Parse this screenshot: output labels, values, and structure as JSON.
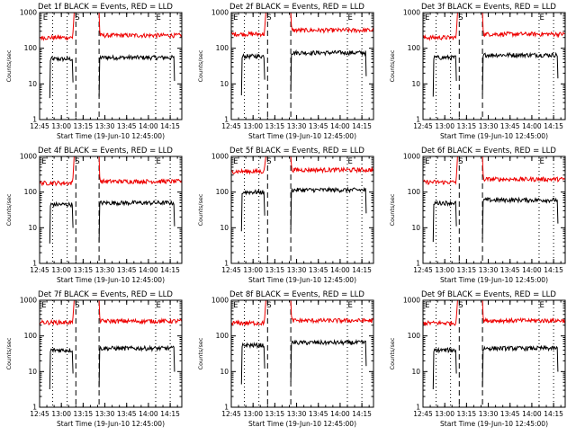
{
  "figure": {
    "colors": {
      "events": "#000000",
      "lld": "#ee0000",
      "axes": "#000000",
      "background": "#ffffff"
    }
  },
  "chart_data": [
    {
      "type": "line",
      "title": "Det 1f BLACK = Events, RED = LLD",
      "ylabel": "Counts/sec",
      "xlabel": "Start Time (19-Jun-10 12:45:00)",
      "y_scale": "log",
      "ylim": [
        1,
        1000
      ],
      "y_ticks": [
        "1",
        "10",
        "100",
        "1000"
      ],
      "x_ticks": [
        "12:45",
        "13:00",
        "13:15",
        "13:30",
        "13:45",
        "14:00",
        "14:15"
      ],
      "xlim": [
        "12:45",
        "14:23"
      ],
      "markers": [
        {
          "label": "E",
          "time": "12:49"
        },
        {
          "label": "S",
          "time": "13:11"
        },
        {
          "label": "E",
          "time": "14:07"
        }
      ],
      "dotted_lines": [
        "12:54",
        "13:04",
        "14:05",
        "14:15"
      ],
      "dashed_lines": [
        "13:10",
        "13:26"
      ],
      "series": [
        {
          "name": "Events",
          "segments": [
            {
              "start": "12:52",
              "end": "13:08",
              "level": 50
            },
            {
              "start": "13:26",
              "end": "14:18",
              "level": 55
            }
          ]
        },
        {
          "name": "LLD",
          "segments": [
            {
              "start": "12:45",
              "end": "13:08",
              "level": 200
            },
            {
              "start": "13:26",
              "end": "14:23",
              "level": 230
            }
          ]
        }
      ]
    },
    {
      "type": "line",
      "title": "Det 2f BLACK = Events, RED = LLD",
      "ylabel": "Counts/sec",
      "xlabel": "Start Time (19-Jun-10 12:45:00)",
      "y_scale": "log",
      "ylim": [
        1,
        1000
      ],
      "y_ticks": [
        "1",
        "10",
        "100",
        "1000"
      ],
      "x_ticks": [
        "12:45",
        "13:00",
        "13:15",
        "13:30",
        "13:45",
        "14:00",
        "14:15"
      ],
      "xlim": [
        "12:45",
        "14:23"
      ],
      "markers": [
        {
          "label": "E",
          "time": "12:48"
        },
        {
          "label": "S",
          "time": "13:11"
        },
        {
          "label": "E",
          "time": "14:07"
        }
      ],
      "dotted_lines": [
        "12:54",
        "13:04",
        "14:05",
        "14:15"
      ],
      "dashed_lines": [
        "13:10",
        "13:26"
      ],
      "series": [
        {
          "name": "Events",
          "segments": [
            {
              "start": "12:52",
              "end": "13:08",
              "level": 60
            },
            {
              "start": "13:26",
              "end": "14:18",
              "level": 75
            }
          ]
        },
        {
          "name": "LLD",
          "segments": [
            {
              "start": "12:45",
              "end": "13:08",
              "level": 250
            },
            {
              "start": "13:26",
              "end": "14:23",
              "level": 320
            }
          ]
        }
      ]
    },
    {
      "type": "line",
      "title": "Det 3f BLACK = Events, RED = LLD",
      "ylabel": "Counts/sec",
      "xlabel": "Start Time (19-Jun-10 12:45:00)",
      "y_scale": "log",
      "ylim": [
        1,
        1000
      ],
      "y_ticks": [
        "1",
        "10",
        "100",
        "1000"
      ],
      "x_ticks": [
        "12:45",
        "13:00",
        "13:15",
        "13:30",
        "13:45",
        "14:00",
        "14:15"
      ],
      "xlim": [
        "12:45",
        "14:23"
      ],
      "markers": [
        {
          "label": "E",
          "time": "12:48"
        },
        {
          "label": "S",
          "time": "13:11"
        },
        {
          "label": "E",
          "time": "14:07"
        }
      ],
      "dotted_lines": [
        "12:54",
        "13:04",
        "14:05",
        "14:15"
      ],
      "dashed_lines": [
        "13:10",
        "13:26"
      ],
      "series": [
        {
          "name": "Events",
          "segments": [
            {
              "start": "12:52",
              "end": "13:08",
              "level": 55
            },
            {
              "start": "13:26",
              "end": "14:18",
              "level": 65
            }
          ]
        },
        {
          "name": "LLD",
          "segments": [
            {
              "start": "12:45",
              "end": "13:08",
              "level": 200
            },
            {
              "start": "13:26",
              "end": "14:23",
              "level": 250
            }
          ]
        }
      ]
    },
    {
      "type": "line",
      "title": "Det 4f BLACK = Events, RED = LLD",
      "ylabel": "Counts/sec",
      "xlabel": "Start Time (19-Jun-10 12:45:00)",
      "y_scale": "log",
      "ylim": [
        1,
        1000
      ],
      "y_ticks": [
        "1",
        "10",
        "100",
        "1000"
      ],
      "x_ticks": [
        "12:45",
        "13:00",
        "13:15",
        "13:30",
        "13:45",
        "14:00",
        "14:15"
      ],
      "xlim": [
        "12:45",
        "14:23"
      ],
      "markers": [
        {
          "label": "E",
          "time": "12:48"
        },
        {
          "label": "S",
          "time": "13:11"
        },
        {
          "label": "E",
          "time": "14:07"
        }
      ],
      "dotted_lines": [
        "12:54",
        "13:04",
        "14:05",
        "14:15"
      ],
      "dashed_lines": [
        "13:10",
        "13:26"
      ],
      "series": [
        {
          "name": "Events",
          "segments": [
            {
              "start": "12:52",
              "end": "13:08",
              "level": 45
            },
            {
              "start": "13:26",
              "end": "14:18",
              "level": 50
            }
          ]
        },
        {
          "name": "LLD",
          "segments": [
            {
              "start": "12:45",
              "end": "13:08",
              "level": 180
            },
            {
              "start": "13:26",
              "end": "14:23",
              "level": 200
            }
          ]
        }
      ]
    },
    {
      "type": "line",
      "title": "Det 5f BLACK = Events, RED = LLD",
      "ylabel": "Counts/sec",
      "xlabel": "Start Time (19-Jun-10 12:45:00)",
      "y_scale": "log",
      "ylim": [
        1,
        1000
      ],
      "y_ticks": [
        "1",
        "10",
        "100",
        "1000"
      ],
      "x_ticks": [
        "12:45",
        "13:00",
        "13:15",
        "13:30",
        "13:45",
        "14:00",
        "14:15"
      ],
      "xlim": [
        "12:45",
        "14:23"
      ],
      "markers": [
        {
          "label": "E",
          "time": "12:48"
        },
        {
          "label": "S",
          "time": "13:11"
        },
        {
          "label": "E",
          "time": "14:07"
        }
      ],
      "dotted_lines": [
        "12:54",
        "13:04",
        "14:05",
        "14:15"
      ],
      "dashed_lines": [
        "13:10",
        "13:26"
      ],
      "series": [
        {
          "name": "Events",
          "segments": [
            {
              "start": "12:52",
              "end": "13:08",
              "level": 100
            },
            {
              "start": "13:26",
              "end": "14:18",
              "level": 115
            }
          ]
        },
        {
          "name": "LLD",
          "segments": [
            {
              "start": "12:45",
              "end": "13:08",
              "level": 380
            },
            {
              "start": "13:26",
              "end": "14:23",
              "level": 420
            }
          ]
        }
      ]
    },
    {
      "type": "line",
      "title": "Det 6f BLACK = Events, RED = LLD",
      "ylabel": "Counts/sec",
      "xlabel": "Start Time (19-Jun-10 12:45:00)",
      "y_scale": "log",
      "ylim": [
        1,
        1000
      ],
      "y_ticks": [
        "1",
        "10",
        "100",
        "1000"
      ],
      "x_ticks": [
        "12:45",
        "13:00",
        "13:15",
        "13:30",
        "13:45",
        "14:00",
        "14:15"
      ],
      "xlim": [
        "12:45",
        "14:23"
      ],
      "markers": [
        {
          "label": "E",
          "time": "12:48"
        },
        {
          "label": "S",
          "time": "13:11"
        },
        {
          "label": "E",
          "time": "14:07"
        }
      ],
      "dotted_lines": [
        "12:54",
        "13:04",
        "14:05",
        "14:15"
      ],
      "dashed_lines": [
        "13:10",
        "13:26"
      ],
      "series": [
        {
          "name": "Events",
          "segments": [
            {
              "start": "12:52",
              "end": "13:08",
              "level": 50
            },
            {
              "start": "13:26",
              "end": "14:18",
              "level": 60
            }
          ]
        },
        {
          "name": "LLD",
          "segments": [
            {
              "start": "12:45",
              "end": "13:08",
              "level": 190
            },
            {
              "start": "13:26",
              "end": "14:23",
              "level": 230
            }
          ]
        }
      ]
    },
    {
      "type": "line",
      "title": "Det 7f BLACK = Events, RED = LLD",
      "ylabel": "Counts/sec",
      "xlabel": "Start Time (19-Jun-10 12:45:00)",
      "y_scale": "log",
      "ylim": [
        1,
        1000
      ],
      "y_ticks": [
        "1",
        "10",
        "100",
        "1000"
      ],
      "x_ticks": [
        "12:45",
        "13:00",
        "13:15",
        "13:30",
        "13:45",
        "14:00",
        "14:15"
      ],
      "xlim": [
        "12:45",
        "14:23"
      ],
      "markers": [
        {
          "label": "E",
          "time": "12:48"
        },
        {
          "label": "S",
          "time": "13:11"
        },
        {
          "label": "E",
          "time": "14:07"
        }
      ],
      "dotted_lines": [
        "12:54",
        "13:04",
        "14:05",
        "14:15"
      ],
      "dashed_lines": [
        "13:10",
        "13:26"
      ],
      "series": [
        {
          "name": "Events",
          "segments": [
            {
              "start": "12:52",
              "end": "13:08",
              "level": 40
            },
            {
              "start": "13:26",
              "end": "14:18",
              "level": 45
            }
          ]
        },
        {
          "name": "LLD",
          "segments": [
            {
              "start": "12:45",
              "end": "13:08",
              "level": 240
            },
            {
              "start": "13:26",
              "end": "14:23",
              "level": 260
            }
          ]
        }
      ]
    },
    {
      "type": "line",
      "title": "Det 8f BLACK = Events, RED = LLD",
      "ylabel": "Counts/sec",
      "xlabel": "Start Time (19-Jun-10 12:45:00)",
      "y_scale": "log",
      "ylim": [
        1,
        1000
      ],
      "y_ticks": [
        "1",
        "10",
        "100",
        "1000"
      ],
      "x_ticks": [
        "12:45",
        "13:00",
        "13:15",
        "13:30",
        "13:45",
        "14:00",
        "14:15"
      ],
      "xlim": [
        "12:45",
        "14:23"
      ],
      "markers": [
        {
          "label": "E",
          "time": "12:48"
        },
        {
          "label": "S",
          "time": "13:11"
        },
        {
          "label": "E",
          "time": "14:07"
        }
      ],
      "dotted_lines": [
        "12:54",
        "13:04",
        "14:05",
        "14:15"
      ],
      "dashed_lines": [
        "13:10",
        "13:26"
      ],
      "series": [
        {
          "name": "Events",
          "segments": [
            {
              "start": "12:52",
              "end": "13:08",
              "level": 55
            },
            {
              "start": "13:26",
              "end": "14:18",
              "level": 65
            }
          ]
        },
        {
          "name": "LLD",
          "segments": [
            {
              "start": "12:45",
              "end": "13:08",
              "level": 230
            },
            {
              "start": "13:26",
              "end": "14:23",
              "level": 270
            }
          ]
        }
      ]
    },
    {
      "type": "line",
      "title": "Det 9f BLACK = Events, RED = LLD",
      "ylabel": "Counts/sec",
      "xlabel": "Start Time (19-Jun-10 12:45:00)",
      "y_scale": "log",
      "ylim": [
        1,
        1000
      ],
      "y_ticks": [
        "1",
        "10",
        "100",
        "1000"
      ],
      "x_ticks": [
        "12:45",
        "13:00",
        "13:15",
        "13:30",
        "13:45",
        "14:00",
        "14:15"
      ],
      "xlim": [
        "12:45",
        "14:23"
      ],
      "markers": [
        {
          "label": "E",
          "time": "12:48"
        },
        {
          "label": "S",
          "time": "13:11"
        },
        {
          "label": "E",
          "time": "14:07"
        }
      ],
      "dotted_lines": [
        "12:54",
        "13:04",
        "14:05",
        "14:15"
      ],
      "dashed_lines": [
        "13:10",
        "13:26"
      ],
      "series": [
        {
          "name": "Events",
          "segments": [
            {
              "start": "12:52",
              "end": "13:08",
              "level": 40
            },
            {
              "start": "13:26",
              "end": "14:18",
              "level": 45
            }
          ]
        },
        {
          "name": "LLD",
          "segments": [
            {
              "start": "12:45",
              "end": "13:08",
              "level": 230
            },
            {
              "start": "13:26",
              "end": "14:23",
              "level": 270
            }
          ]
        }
      ]
    }
  ]
}
